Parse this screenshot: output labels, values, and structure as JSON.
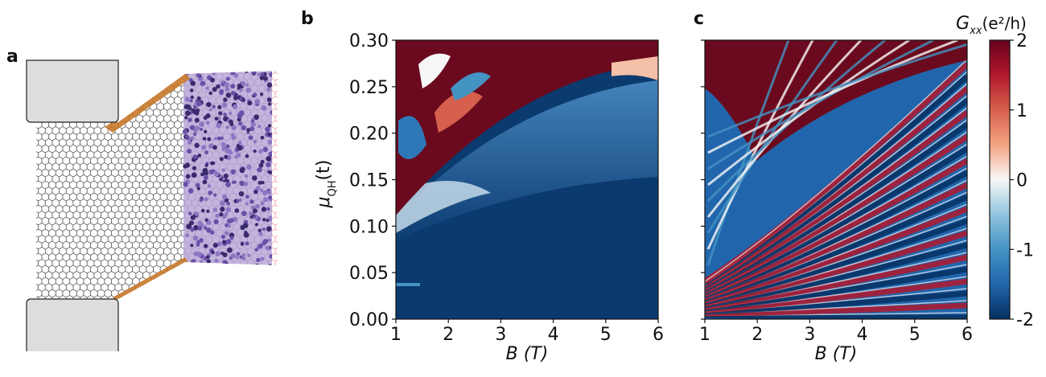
{
  "panel_a": {
    "label": "a"
  },
  "chart_data": [
    {
      "type": "heatmap",
      "panel_label": "b",
      "x_label": "B (T)",
      "y_label": {
        "symbol": "μ",
        "subscript": "QH",
        "unit": "(t)"
      },
      "xlim": [
        1,
        6
      ],
      "xticks": [
        1,
        2,
        3,
        4,
        5,
        6
      ],
      "ylim": [
        0,
        0.3
      ],
      "yticks": [
        {
          "value": 0,
          "label": "0.00"
        },
        0.05,
        {
          "value": 0.1,
          "label": "0.10"
        },
        0.15,
        {
          "value": 0.2,
          "label": "0.20"
        },
        0.25,
        {
          "value": 0.3,
          "label": "0.30"
        }
      ],
      "show_ytick_labels": true
    },
    {
      "type": "heatmap",
      "panel_label": "c",
      "x_label": "B (T)",
      "xlim": [
        1,
        6
      ],
      "xticks": [
        1,
        2,
        3,
        4,
        5,
        6
      ],
      "ylim": [
        0,
        0.3
      ],
      "yticks": [
        0,
        0.05,
        0.1,
        0.15,
        0.2,
        0.25,
        0.3
      ],
      "show_ytick_labels": false
    },
    {
      "type": "colorbar",
      "label": {
        "symbol": "G",
        "subscript": "xx",
        "unit": "(e²/h)"
      },
      "lim": [
        -2,
        2
      ],
      "ticks": [
        -2,
        -1,
        0,
        1,
        2
      ],
      "colors": [
        "#053061",
        "#2166ac",
        "#4393c3",
        "#92c5de",
        "#f7f7f7",
        "#f4a582",
        "#d6604d",
        "#b2182b",
        "#67001f"
      ]
    }
  ]
}
